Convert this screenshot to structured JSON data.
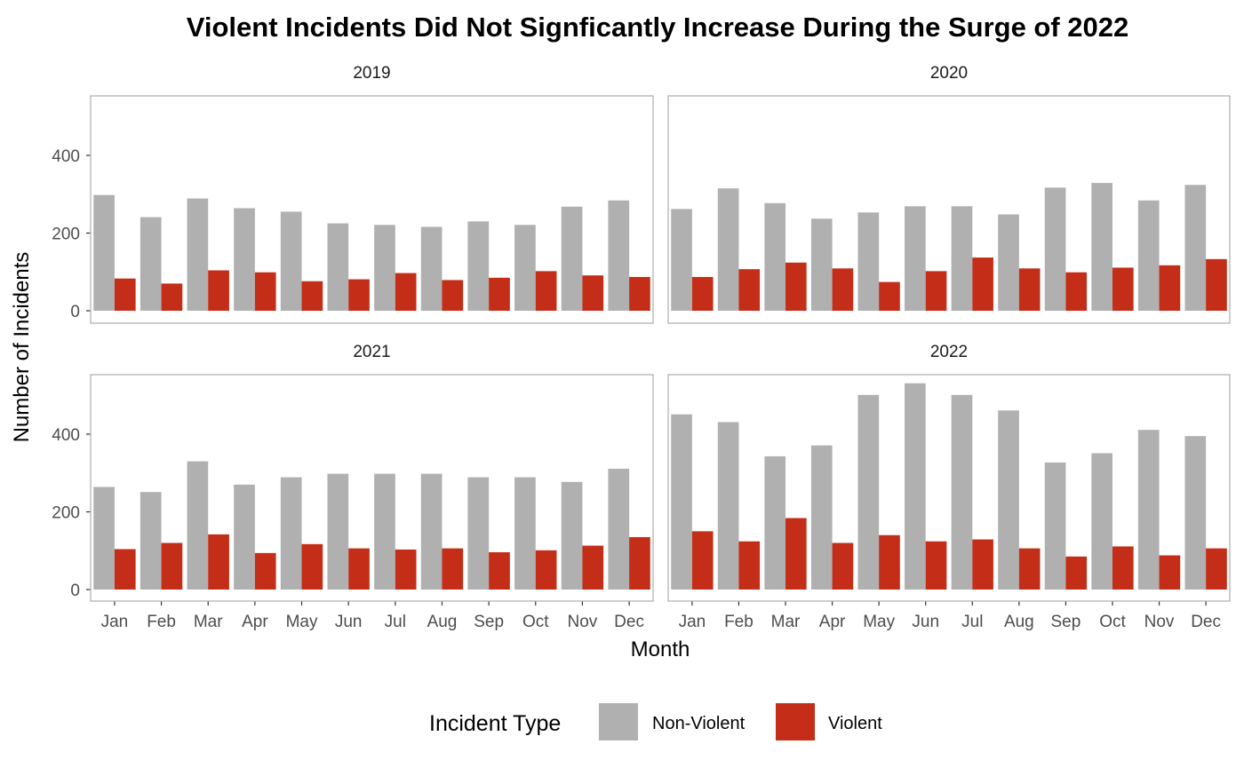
{
  "chart_data": {
    "type": "bar",
    "title": "Violent Incidents Did Not Signficantly Increase During the Surge of 2022",
    "xlabel": "Month",
    "ylabel": "Number of Incidents",
    "ylim": [
      0,
      540
    ],
    "yticks": [
      0,
      200,
      400
    ],
    "categories": [
      "Jan",
      "Feb",
      "Mar",
      "Apr",
      "May",
      "Jun",
      "Jul",
      "Aug",
      "Sep",
      "Oct",
      "Nov",
      "Dec"
    ],
    "legend": {
      "title": "Incident Type",
      "position": "bottom",
      "entries": [
        {
          "name": "Non-Violent",
          "color": "#b0b0b0"
        },
        {
          "name": "Violent",
          "color": "#c42e18"
        }
      ]
    },
    "grid": false,
    "facets": [
      {
        "label": "2019",
        "series": [
          {
            "name": "Non-Violent",
            "values": [
              298,
              241,
              289,
              264,
              255,
              225,
              221,
              216,
              230,
              221,
              268,
              284
            ]
          },
          {
            "name": "Violent",
            "values": [
              83,
              70,
              104,
              99,
              76,
              81,
              97,
              79,
              85,
              102,
              91,
              87
            ]
          }
        ]
      },
      {
        "label": "2020",
        "series": [
          {
            "name": "Non-Violent",
            "values": [
              262,
              315,
              277,
              237,
              253,
              269,
              269,
              248,
              317,
              329,
              284,
              324
            ]
          },
          {
            "name": "Violent",
            "values": [
              87,
              107,
              124,
              109,
              74,
              102,
              137,
              109,
              99,
              111,
              117,
              133
            ]
          }
        ]
      },
      {
        "label": "2021",
        "series": [
          {
            "name": "Non-Violent",
            "values": [
              264,
              251,
              330,
              270,
              289,
              298,
              298,
              298,
              289,
              289,
              277,
              311
            ]
          },
          {
            "name": "Violent",
            "values": [
              104,
              120,
              142,
              94,
              117,
              106,
              103,
              106,
              96,
              101,
              113,
              135
            ]
          }
        ]
      },
      {
        "label": "2022",
        "series": [
          {
            "name": "Non-Violent",
            "values": [
              451,
              431,
              343,
              371,
              501,
              531,
              501,
              461,
              327,
              351,
              411,
              395
            ]
          },
          {
            "name": "Violent",
            "values": [
              150,
              124,
              184,
              120,
              140,
              124,
              129,
              106,
              85,
              111,
              88,
              106
            ]
          }
        ]
      }
    ]
  }
}
